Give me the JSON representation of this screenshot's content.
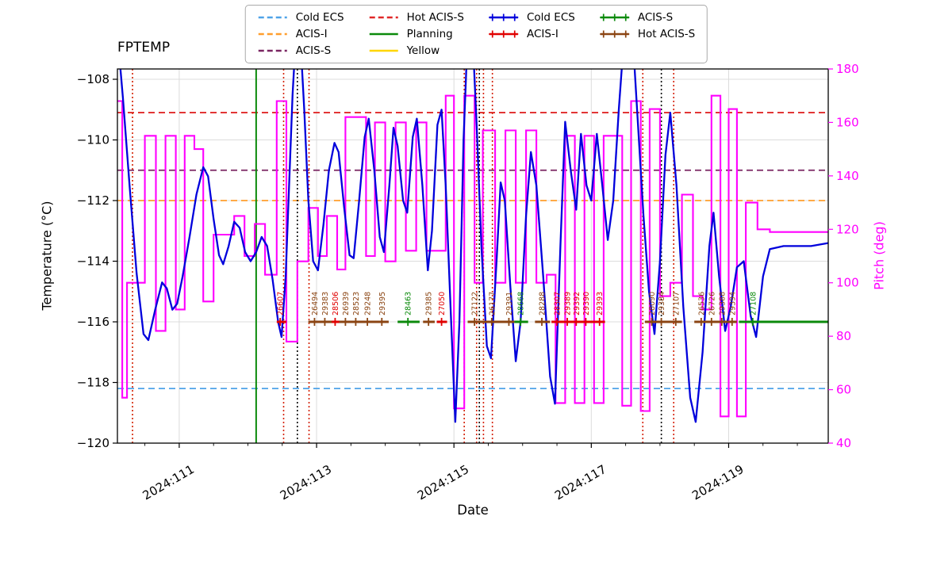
{
  "colors": {
    "blue": "#0000DC",
    "red": "#E00000",
    "green": "#0B8A0B",
    "brown": "#8B4513",
    "magenta": "#FF00FF",
    "grid": "#DCDCDC",
    "limit_cold_ecs": "#4FA3E8",
    "limit_acis_i": "#FF9E2C",
    "limit_acis_s": "#7A2662",
    "limit_hot_acis_s": "#E02828",
    "planning": "#0B8A0B",
    "yellow": "#FFD600",
    "vline_red": "#D42000",
    "black": "#000000"
  },
  "legend": {
    "columns": [
      [
        {
          "label": "Cold ECS",
          "style": "dashed",
          "color_key": "limit_cold_ecs"
        },
        {
          "label": "ACIS-I",
          "style": "dashed",
          "color_key": "limit_acis_i"
        },
        {
          "label": "ACIS-S",
          "style": "dashed",
          "color_key": "limit_acis_s"
        }
      ],
      [
        {
          "label": "Hot ACIS-S",
          "style": "dashed",
          "color_key": "limit_hot_acis_s"
        },
        {
          "label": "Planning",
          "style": "solid",
          "color_key": "planning"
        },
        {
          "label": "Yellow",
          "style": "solid",
          "color_key": "yellow"
        }
      ],
      [
        {
          "label": "Cold ECS",
          "style": "marker",
          "color_key": "blue"
        },
        {
          "label": "ACIS-I",
          "style": "marker",
          "color_key": "red"
        }
      ],
      [
        {
          "label": "ACIS-S",
          "style": "marker",
          "color_key": "green"
        },
        {
          "label": "Hot ACIS-S",
          "style": "marker",
          "color_key": "brown"
        }
      ]
    ]
  },
  "chart_data": {
    "type": "line",
    "title": "FPTEMP",
    "xlabel": "Date",
    "ylabel_left": "Temperature (°C)",
    "ylabel_right": "Pitch (deg)",
    "x_range": [
      110.1,
      120.45
    ],
    "temp_range": [
      -120,
      -107.66
    ],
    "pitch_range": [
      40,
      180
    ],
    "x_ticks": [
      {
        "value": 111,
        "label": "2024:111"
      },
      {
        "value": 113,
        "label": "2024:113"
      },
      {
        "value": 115,
        "label": "2024:115"
      },
      {
        "value": 117,
        "label": "2024:117"
      },
      {
        "value": 119,
        "label": "2024:119"
      }
    ],
    "y_left_ticks": [
      -108,
      -110,
      -112,
      -114,
      -116,
      -118,
      -120
    ],
    "y_right_ticks": [
      40,
      60,
      80,
      100,
      120,
      140,
      160,
      180
    ],
    "limits": [
      {
        "name": "Hot ACIS-S",
        "temp": -109.1,
        "color_key": "limit_hot_acis_s"
      },
      {
        "name": "ACIS-S",
        "temp": -111.0,
        "color_key": "limit_acis_s"
      },
      {
        "name": "ACIS-I",
        "temp": -112.0,
        "color_key": "limit_acis_i"
      },
      {
        "name": "Cold ECS",
        "temp": -118.2,
        "color_key": "limit_cold_ecs"
      }
    ],
    "planning_line_x": 112.12,
    "red_dotted_lines": [
      110.32,
      112.52,
      112.89,
      115.15,
      115.33,
      115.43,
      115.56,
      117.75,
      118.2
    ],
    "black_dotted_lines": [
      112.72,
      115.37,
      118.02
    ],
    "temperature_series": {
      "name": "Cold ECS",
      "points": [
        [
          110.1,
          -106.5
        ],
        [
          110.18,
          -108.6
        ],
        [
          110.28,
          -111.6
        ],
        [
          110.38,
          -114.4
        ],
        [
          110.48,
          -116.4
        ],
        [
          110.55,
          -116.6
        ],
        [
          110.65,
          -115.6
        ],
        [
          110.75,
          -114.7
        ],
        [
          110.82,
          -114.9
        ],
        [
          110.9,
          -115.6
        ],
        [
          110.97,
          -115.4
        ],
        [
          111.05,
          -114.5
        ],
        [
          111.15,
          -113.2
        ],
        [
          111.25,
          -111.8
        ],
        [
          111.35,
          -110.9
        ],
        [
          111.42,
          -111.2
        ],
        [
          111.5,
          -112.6
        ],
        [
          111.58,
          -113.8
        ],
        [
          111.64,
          -114.1
        ],
        [
          111.72,
          -113.5
        ],
        [
          111.8,
          -112.7
        ],
        [
          111.88,
          -112.9
        ],
        [
          111.96,
          -113.7
        ],
        [
          112.04,
          -114.0
        ],
        [
          112.12,
          -113.7
        ],
        [
          112.2,
          -113.2
        ],
        [
          112.28,
          -113.5
        ],
        [
          112.36,
          -114.6
        ],
        [
          112.44,
          -116.0
        ],
        [
          112.49,
          -116.5
        ],
        [
          112.55,
          -114.5
        ],
        [
          112.6,
          -111.5
        ],
        [
          112.65,
          -108.5
        ],
        [
          112.7,
          -106.5
        ],
        [
          112.76,
          -106.5
        ],
        [
          112.82,
          -109.0
        ],
        [
          112.88,
          -112.0
        ],
        [
          112.95,
          -114.0
        ],
        [
          113.02,
          -114.3
        ],
        [
          113.1,
          -112.8
        ],
        [
          113.18,
          -111.0
        ],
        [
          113.26,
          -110.1
        ],
        [
          113.32,
          -110.4
        ],
        [
          113.4,
          -112.2
        ],
        [
          113.48,
          -113.8
        ],
        [
          113.54,
          -113.9
        ],
        [
          113.62,
          -112.0
        ],
        [
          113.7,
          -109.9
        ],
        [
          113.76,
          -109.3
        ],
        [
          113.84,
          -111.0
        ],
        [
          113.92,
          -113.2
        ],
        [
          113.98,
          -113.7
        ],
        [
          114.06,
          -111.5
        ],
        [
          114.12,
          -109.6
        ],
        [
          114.18,
          -110.2
        ],
        [
          114.26,
          -112.0
        ],
        [
          114.32,
          -112.4
        ],
        [
          114.4,
          -109.9
        ],
        [
          114.46,
          -109.3
        ],
        [
          114.54,
          -111.5
        ],
        [
          114.62,
          -114.3
        ],
        [
          114.68,
          -113.0
        ],
        [
          114.76,
          -109.5
        ],
        [
          114.82,
          -109.0
        ],
        [
          114.88,
          -111.5
        ],
        [
          114.95,
          -115.5
        ],
        [
          115.02,
          -119.3
        ],
        [
          115.08,
          -116.0
        ],
        [
          115.14,
          -110.0
        ],
        [
          115.2,
          -106.5
        ],
        [
          115.27,
          -106.5
        ],
        [
          115.33,
          -109.5
        ],
        [
          115.4,
          -113.5
        ],
        [
          115.48,
          -116.8
        ],
        [
          115.54,
          -117.2
        ],
        [
          115.62,
          -114.0
        ],
        [
          115.68,
          -111.4
        ],
        [
          115.74,
          -112.0
        ],
        [
          115.82,
          -114.8
        ],
        [
          115.9,
          -117.3
        ],
        [
          115.97,
          -116.0
        ],
        [
          116.05,
          -112.5
        ],
        [
          116.12,
          -110.4
        ],
        [
          116.2,
          -111.5
        ],
        [
          116.3,
          -114.5
        ],
        [
          116.4,
          -117.8
        ],
        [
          116.47,
          -118.7
        ],
        [
          116.55,
          -113.5
        ],
        [
          116.62,
          -109.4
        ],
        [
          116.7,
          -111.0
        ],
        [
          116.78,
          -112.3
        ],
        [
          116.85,
          -109.8
        ],
        [
          116.93,
          -111.5
        ],
        [
          117.0,
          -112.0
        ],
        [
          117.08,
          -109.8
        ],
        [
          117.16,
          -111.5
        ],
        [
          117.24,
          -113.3
        ],
        [
          117.32,
          -112.0
        ],
        [
          117.4,
          -109.0
        ],
        [
          117.48,
          -106.5
        ],
        [
          117.6,
          -106.5
        ],
        [
          117.68,
          -109.5
        ],
        [
          117.76,
          -112.5
        ],
        [
          117.84,
          -115.0
        ],
        [
          117.92,
          -116.4
        ],
        [
          118.0,
          -114.0
        ],
        [
          118.08,
          -110.5
        ],
        [
          118.15,
          -109.1
        ],
        [
          118.24,
          -111.5
        ],
        [
          118.34,
          -115.5
        ],
        [
          118.44,
          -118.5
        ],
        [
          118.52,
          -119.3
        ],
        [
          118.62,
          -117.0
        ],
        [
          118.72,
          -113.5
        ],
        [
          118.78,
          -112.4
        ],
        [
          118.86,
          -114.5
        ],
        [
          118.95,
          -116.3
        ],
        [
          119.03,
          -115.5
        ],
        [
          119.12,
          -114.2
        ],
        [
          119.22,
          -114.0
        ],
        [
          119.32,
          -115.8
        ],
        [
          119.4,
          -116.5
        ],
        [
          119.5,
          -114.5
        ],
        [
          119.6,
          -113.6
        ],
        [
          119.8,
          -113.5
        ],
        [
          120.0,
          -113.5
        ],
        [
          120.2,
          -113.5
        ],
        [
          120.45,
          -113.4
        ]
      ]
    },
    "pitch_series": {
      "name": "Pitch",
      "segments": [
        [
          110.1,
          110.17,
          168
        ],
        [
          110.17,
          110.24,
          57
        ],
        [
          110.24,
          110.5,
          100
        ],
        [
          110.5,
          110.66,
          155
        ],
        [
          110.66,
          110.8,
          82
        ],
        [
          110.8,
          110.95,
          155
        ],
        [
          110.95,
          111.08,
          90
        ],
        [
          111.08,
          111.22,
          155
        ],
        [
          111.22,
          111.35,
          150
        ],
        [
          111.35,
          111.5,
          93
        ],
        [
          111.5,
          111.8,
          118
        ],
        [
          111.8,
          111.95,
          125
        ],
        [
          111.95,
          112.1,
          110
        ],
        [
          112.1,
          112.25,
          122
        ],
        [
          112.25,
          112.42,
          103
        ],
        [
          112.42,
          112.56,
          168
        ],
        [
          112.56,
          112.72,
          78
        ],
        [
          112.72,
          112.88,
          108
        ],
        [
          112.88,
          113.02,
          128
        ],
        [
          113.02,
          113.15,
          110
        ],
        [
          113.15,
          113.3,
          125
        ],
        [
          113.3,
          113.42,
          105
        ],
        [
          113.42,
          113.72,
          162
        ],
        [
          113.72,
          113.85,
          110
        ],
        [
          113.85,
          114.0,
          160
        ],
        [
          114.0,
          114.15,
          108
        ],
        [
          114.15,
          114.3,
          160
        ],
        [
          114.3,
          114.45,
          112
        ],
        [
          114.45,
          114.6,
          160
        ],
        [
          114.6,
          114.88,
          112
        ],
        [
          114.88,
          115.0,
          170
        ],
        [
          115.0,
          115.15,
          53
        ],
        [
          115.15,
          115.3,
          170
        ],
        [
          115.3,
          115.42,
          100
        ],
        [
          115.42,
          115.6,
          157
        ],
        [
          115.6,
          115.75,
          100
        ],
        [
          115.75,
          115.9,
          157
        ],
        [
          115.9,
          116.05,
          100
        ],
        [
          116.05,
          116.2,
          157
        ],
        [
          116.2,
          116.35,
          100
        ],
        [
          116.35,
          116.48,
          103
        ],
        [
          116.48,
          116.62,
          55
        ],
        [
          116.62,
          116.76,
          155
        ],
        [
          116.76,
          116.9,
          55
        ],
        [
          116.9,
          117.04,
          155
        ],
        [
          117.04,
          117.18,
          55
        ],
        [
          117.18,
          117.45,
          155
        ],
        [
          117.45,
          117.58,
          54
        ],
        [
          117.58,
          117.72,
          168
        ],
        [
          117.72,
          117.85,
          52
        ],
        [
          117.85,
          118.0,
          165
        ],
        [
          118.0,
          118.15,
          95
        ],
        [
          118.15,
          118.32,
          100
        ],
        [
          118.32,
          118.48,
          133
        ],
        [
          118.48,
          118.62,
          95
        ],
        [
          118.62,
          118.75,
          90
        ],
        [
          118.75,
          118.88,
          170
        ],
        [
          118.88,
          119.0,
          50
        ],
        [
          119.0,
          119.12,
          165
        ],
        [
          119.12,
          119.25,
          50
        ],
        [
          119.25,
          119.42,
          130
        ],
        [
          119.42,
          119.6,
          120
        ],
        [
          119.6,
          120.45,
          119
        ]
      ]
    },
    "observations": {
      "band_temp": -116,
      "items": [
        {
          "id": "26607",
          "date": 112.47,
          "color": "red"
        },
        {
          "id": "26494",
          "date": 112.97,
          "color": "brown"
        },
        {
          "id": "29383",
          "date": 113.12,
          "color": "brown"
        },
        {
          "id": "28506",
          "date": 113.27,
          "color": "red"
        },
        {
          "id": "26939",
          "date": 113.42,
          "color": "brown"
        },
        {
          "id": "28523",
          "date": 113.57,
          "color": "brown"
        },
        {
          "id": "29248",
          "date": 113.74,
          "color": "brown"
        },
        {
          "id": "29395",
          "date": 113.95,
          "color": "brown"
        },
        {
          "id": "28463",
          "date": 114.33,
          "color": "green"
        },
        {
          "id": "29385",
          "date": 114.63,
          "color": "brown"
        },
        {
          "id": "27050",
          "date": 114.82,
          "color": "red"
        },
        {
          "id": "27122",
          "date": 115.3,
          "color": "brown"
        },
        {
          "id": "26177",
          "date": 115.55,
          "color": "brown"
        },
        {
          "id": "29391",
          "date": 115.8,
          "color": "brown"
        },
        {
          "id": "28668",
          "date": 115.97,
          "color": "green"
        },
        {
          "id": "28288",
          "date": 116.28,
          "color": "brown"
        },
        {
          "id": "28307",
          "date": 116.5,
          "color": "red"
        },
        {
          "id": "29389",
          "date": 116.65,
          "color": "red"
        },
        {
          "id": "29392",
          "date": 116.78,
          "color": "red"
        },
        {
          "id": "29390",
          "date": 116.92,
          "color": "red"
        },
        {
          "id": "29393",
          "date": 117.12,
          "color": "red"
        },
        {
          "id": "28090",
          "date": 117.88,
          "color": "brown"
        },
        {
          "id": "29384",
          "date": 118.02,
          "color": "brown"
        },
        {
          "id": "27107",
          "date": 118.23,
          "color": "brown"
        },
        {
          "id": "26536",
          "date": 118.6,
          "color": "brown"
        },
        {
          "id": "26726",
          "date": 118.75,
          "color": "brown"
        },
        {
          "id": "29388",
          "date": 118.9,
          "color": "brown"
        },
        {
          "id": "29394",
          "date": 119.05,
          "color": "brown"
        },
        {
          "id": "27108",
          "date": 119.35,
          "color": "green"
        }
      ],
      "band_segments": [
        {
          "start": 112.42,
          "end": 112.56,
          "color": "red"
        },
        {
          "start": 112.88,
          "end": 114.05,
          "color": "brown"
        },
        {
          "start": 113.22,
          "end": 113.33,
          "color": "red"
        },
        {
          "start": 114.18,
          "end": 114.5,
          "color": "green"
        },
        {
          "start": 114.55,
          "end": 114.72,
          "color": "brown"
        },
        {
          "start": 114.75,
          "end": 114.9,
          "color": "red"
        },
        {
          "start": 115.2,
          "end": 115.88,
          "color": "brown"
        },
        {
          "start": 115.88,
          "end": 116.08,
          "color": "green"
        },
        {
          "start": 116.18,
          "end": 116.4,
          "color": "brown"
        },
        {
          "start": 116.42,
          "end": 117.2,
          "color": "red"
        },
        {
          "start": 117.78,
          "end": 118.32,
          "color": "brown"
        },
        {
          "start": 118.5,
          "end": 119.12,
          "color": "brown"
        },
        {
          "start": 119.15,
          "end": 120.45,
          "color": "green"
        }
      ]
    }
  }
}
